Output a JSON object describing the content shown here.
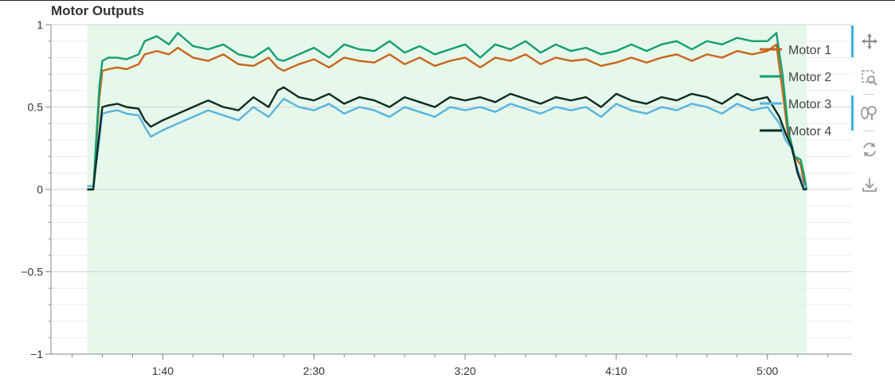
{
  "chart_data": {
    "type": "line",
    "title": "Motor Outputs",
    "xlabel": "",
    "ylabel": "",
    "x_unit": "seconds",
    "xlim": [
      63,
      328
    ],
    "ylim": [
      -1,
      1
    ],
    "x_ticks": [
      {
        "value": 100,
        "label": "1:40"
      },
      {
        "value": 150,
        "label": "2:30"
      },
      {
        "value": 200,
        "label": "3:20"
      },
      {
        "value": 250,
        "label": "4:10"
      },
      {
        "value": 300,
        "label": "5:00"
      }
    ],
    "y_ticks": [
      {
        "value": 1,
        "label": "1"
      },
      {
        "value": 0.5,
        "label": "0.5"
      },
      {
        "value": 0,
        "label": "0"
      },
      {
        "value": -0.5,
        "label": "−0.5"
      },
      {
        "value": -1,
        "label": "−1"
      }
    ],
    "highlight_range": [
      75,
      313
    ],
    "grid": true,
    "legend_position": "top-right",
    "series": [
      {
        "name": "Motor 1",
        "color": "#c8651b",
        "points": [
          [
            75,
            0.0
          ],
          [
            77,
            0.0
          ],
          [
            79,
            0.55
          ],
          [
            80,
            0.72
          ],
          [
            82,
            0.73
          ],
          [
            85,
            0.74
          ],
          [
            88,
            0.73
          ],
          [
            92,
            0.76
          ],
          [
            94,
            0.82
          ],
          [
            98,
            0.84
          ],
          [
            102,
            0.82
          ],
          [
            105,
            0.86
          ],
          [
            110,
            0.8
          ],
          [
            115,
            0.78
          ],
          [
            120,
            0.82
          ],
          [
            125,
            0.76
          ],
          [
            130,
            0.75
          ],
          [
            135,
            0.8
          ],
          [
            138,
            0.74
          ],
          [
            140,
            0.72
          ],
          [
            145,
            0.76
          ],
          [
            150,
            0.79
          ],
          [
            155,
            0.74
          ],
          [
            160,
            0.8
          ],
          [
            165,
            0.78
          ],
          [
            170,
            0.77
          ],
          [
            175,
            0.82
          ],
          [
            180,
            0.76
          ],
          [
            185,
            0.8
          ],
          [
            190,
            0.75
          ],
          [
            195,
            0.78
          ],
          [
            200,
            0.8
          ],
          [
            205,
            0.74
          ],
          [
            210,
            0.8
          ],
          [
            215,
            0.78
          ],
          [
            220,
            0.82
          ],
          [
            225,
            0.76
          ],
          [
            230,
            0.8
          ],
          [
            235,
            0.78
          ],
          [
            240,
            0.79
          ],
          [
            245,
            0.75
          ],
          [
            250,
            0.77
          ],
          [
            255,
            0.8
          ],
          [
            260,
            0.77
          ],
          [
            265,
            0.8
          ],
          [
            270,
            0.82
          ],
          [
            275,
            0.78
          ],
          [
            280,
            0.82
          ],
          [
            285,
            0.8
          ],
          [
            290,
            0.84
          ],
          [
            295,
            0.82
          ],
          [
            300,
            0.84
          ],
          [
            303,
            0.88
          ],
          [
            305,
            0.6
          ],
          [
            307,
            0.3
          ],
          [
            309,
            0.2
          ],
          [
            311,
            0.15
          ],
          [
            312,
            0.05
          ],
          [
            313,
            0.0
          ]
        ]
      },
      {
        "name": "Motor 2",
        "color": "#139e72",
        "points": [
          [
            75,
            0.0
          ],
          [
            77,
            0.0
          ],
          [
            79,
            0.62
          ],
          [
            80,
            0.78
          ],
          [
            82,
            0.8
          ],
          [
            85,
            0.8
          ],
          [
            88,
            0.79
          ],
          [
            92,
            0.82
          ],
          [
            94,
            0.9
          ],
          [
            98,
            0.93
          ],
          [
            102,
            0.88
          ],
          [
            105,
            0.95
          ],
          [
            110,
            0.87
          ],
          [
            115,
            0.85
          ],
          [
            120,
            0.88
          ],
          [
            125,
            0.82
          ],
          [
            130,
            0.8
          ],
          [
            135,
            0.86
          ],
          [
            138,
            0.79
          ],
          [
            140,
            0.78
          ],
          [
            145,
            0.82
          ],
          [
            150,
            0.86
          ],
          [
            155,
            0.8
          ],
          [
            160,
            0.88
          ],
          [
            165,
            0.85
          ],
          [
            170,
            0.84
          ],
          [
            175,
            0.9
          ],
          [
            180,
            0.83
          ],
          [
            185,
            0.87
          ],
          [
            190,
            0.82
          ],
          [
            195,
            0.85
          ],
          [
            200,
            0.88
          ],
          [
            205,
            0.8
          ],
          [
            210,
            0.88
          ],
          [
            215,
            0.85
          ],
          [
            220,
            0.9
          ],
          [
            225,
            0.83
          ],
          [
            230,
            0.88
          ],
          [
            235,
            0.84
          ],
          [
            240,
            0.86
          ],
          [
            245,
            0.82
          ],
          [
            250,
            0.84
          ],
          [
            255,
            0.88
          ],
          [
            260,
            0.84
          ],
          [
            265,
            0.88
          ],
          [
            270,
            0.9
          ],
          [
            275,
            0.85
          ],
          [
            280,
            0.9
          ],
          [
            285,
            0.88
          ],
          [
            290,
            0.92
          ],
          [
            295,
            0.9
          ],
          [
            300,
            0.9
          ],
          [
            303,
            0.95
          ],
          [
            305,
            0.7
          ],
          [
            307,
            0.35
          ],
          [
            309,
            0.2
          ],
          [
            311,
            0.18
          ],
          [
            312,
            0.1
          ],
          [
            313,
            0.0
          ]
        ]
      },
      {
        "name": "Motor 3",
        "color": "#56b4e2",
        "points": [
          [
            75,
            0.02
          ],
          [
            77,
            0.02
          ],
          [
            79,
            0.3
          ],
          [
            80,
            0.46
          ],
          [
            82,
            0.47
          ],
          [
            85,
            0.48
          ],
          [
            88,
            0.46
          ],
          [
            92,
            0.45
          ],
          [
            94,
            0.38
          ],
          [
            96,
            0.32
          ],
          [
            100,
            0.36
          ],
          [
            105,
            0.4
          ],
          [
            110,
            0.44
          ],
          [
            115,
            0.48
          ],
          [
            120,
            0.45
          ],
          [
            125,
            0.42
          ],
          [
            130,
            0.5
          ],
          [
            135,
            0.44
          ],
          [
            140,
            0.55
          ],
          [
            145,
            0.5
          ],
          [
            150,
            0.48
          ],
          [
            155,
            0.52
          ],
          [
            160,
            0.46
          ],
          [
            165,
            0.5
          ],
          [
            170,
            0.48
          ],
          [
            175,
            0.44
          ],
          [
            180,
            0.5
          ],
          [
            185,
            0.47
          ],
          [
            190,
            0.44
          ],
          [
            195,
            0.5
          ],
          [
            200,
            0.48
          ],
          [
            205,
            0.5
          ],
          [
            210,
            0.47
          ],
          [
            215,
            0.52
          ],
          [
            220,
            0.49
          ],
          [
            225,
            0.46
          ],
          [
            230,
            0.5
          ],
          [
            235,
            0.48
          ],
          [
            240,
            0.5
          ],
          [
            245,
            0.44
          ],
          [
            250,
            0.52
          ],
          [
            255,
            0.48
          ],
          [
            260,
            0.46
          ],
          [
            265,
            0.5
          ],
          [
            270,
            0.48
          ],
          [
            275,
            0.52
          ],
          [
            280,
            0.5
          ],
          [
            285,
            0.46
          ],
          [
            290,
            0.52
          ],
          [
            295,
            0.48
          ],
          [
            300,
            0.5
          ],
          [
            302,
            0.45
          ],
          [
            304,
            0.4
          ],
          [
            306,
            0.3
          ],
          [
            308,
            0.25
          ],
          [
            310,
            0.12
          ],
          [
            312,
            0.02
          ],
          [
            313,
            0.02
          ]
        ]
      },
      {
        "name": "Motor 4",
        "color": "#0c2c22",
        "points": [
          [
            75,
            0.0
          ],
          [
            77,
            0.0
          ],
          [
            79,
            0.34
          ],
          [
            80,
            0.5
          ],
          [
            82,
            0.51
          ],
          [
            85,
            0.52
          ],
          [
            88,
            0.5
          ],
          [
            92,
            0.49
          ],
          [
            94,
            0.42
          ],
          [
            96,
            0.38
          ],
          [
            100,
            0.42
          ],
          [
            105,
            0.46
          ],
          [
            110,
            0.5
          ],
          [
            115,
            0.54
          ],
          [
            120,
            0.5
          ],
          [
            125,
            0.48
          ],
          [
            130,
            0.56
          ],
          [
            135,
            0.5
          ],
          [
            138,
            0.6
          ],
          [
            140,
            0.62
          ],
          [
            145,
            0.56
          ],
          [
            150,
            0.54
          ],
          [
            155,
            0.58
          ],
          [
            160,
            0.52
          ],
          [
            165,
            0.56
          ],
          [
            170,
            0.54
          ],
          [
            175,
            0.5
          ],
          [
            180,
            0.56
          ],
          [
            185,
            0.53
          ],
          [
            190,
            0.5
          ],
          [
            195,
            0.56
          ],
          [
            200,
            0.54
          ],
          [
            205,
            0.56
          ],
          [
            210,
            0.53
          ],
          [
            215,
            0.58
          ],
          [
            220,
            0.55
          ],
          [
            225,
            0.52
          ],
          [
            230,
            0.56
          ],
          [
            235,
            0.54
          ],
          [
            240,
            0.56
          ],
          [
            245,
            0.5
          ],
          [
            250,
            0.58
          ],
          [
            255,
            0.54
          ],
          [
            260,
            0.52
          ],
          [
            265,
            0.56
          ],
          [
            270,
            0.54
          ],
          [
            275,
            0.58
          ],
          [
            280,
            0.56
          ],
          [
            285,
            0.52
          ],
          [
            290,
            0.58
          ],
          [
            295,
            0.54
          ],
          [
            300,
            0.56
          ],
          [
            302,
            0.5
          ],
          [
            304,
            0.44
          ],
          [
            306,
            0.34
          ],
          [
            308,
            0.26
          ],
          [
            310,
            0.1
          ],
          [
            312,
            0.0
          ],
          [
            313,
            0.0
          ]
        ]
      }
    ]
  },
  "toolbar": {
    "tools": [
      {
        "name": "pan-icon",
        "active": true
      },
      {
        "name": "box-zoom-icon",
        "active": false
      },
      {
        "name": "wheel-zoom-icon",
        "active": true
      },
      {
        "name": "reset-icon",
        "active": false
      },
      {
        "name": "save-icon",
        "active": false
      }
    ]
  }
}
